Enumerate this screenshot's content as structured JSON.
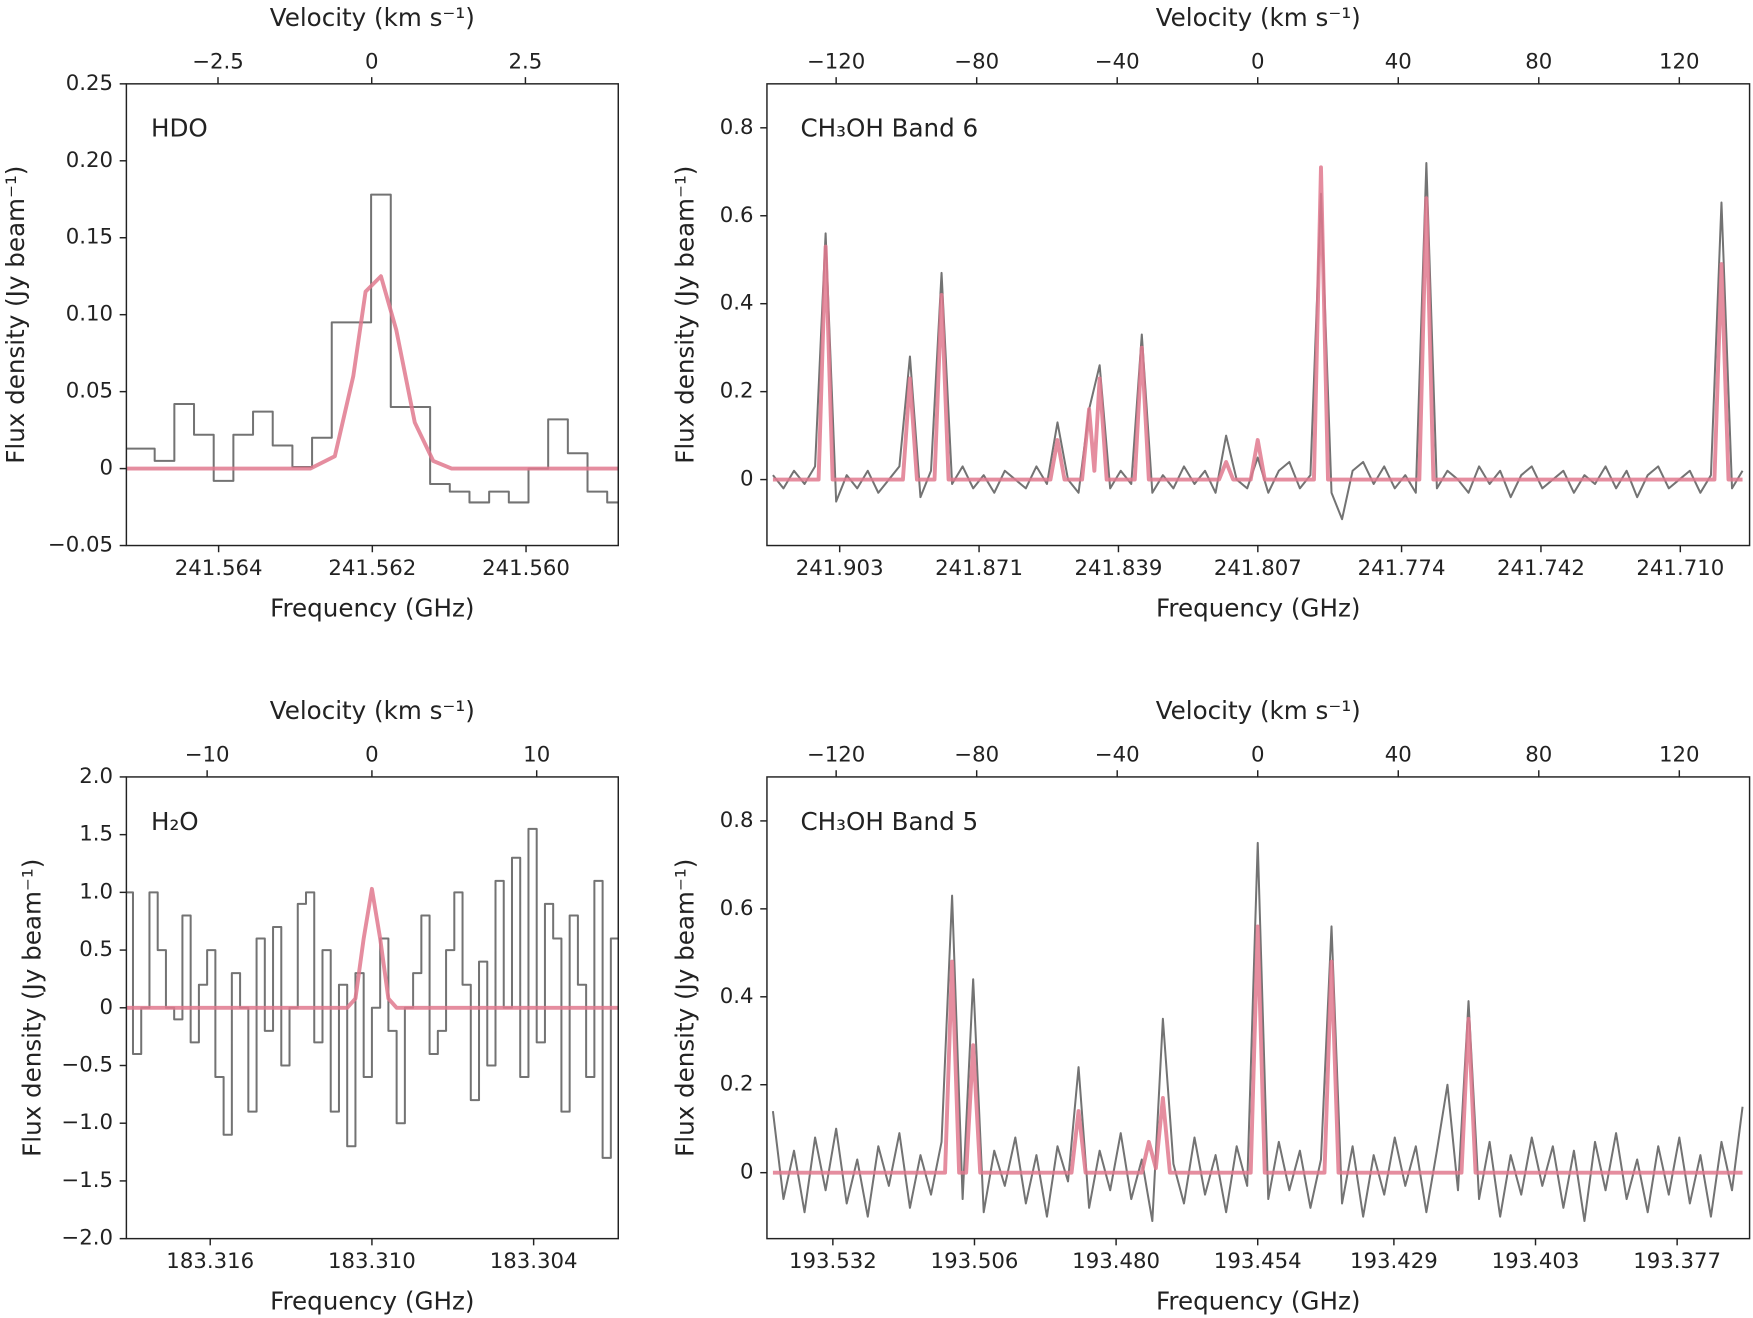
{
  "chart_data": [
    {
      "type": "line",
      "annotation": "HDO",
      "xlabel": "Frequency (GHz)",
      "x2label": "Velocity (km s⁻¹)",
      "ylabel": "Flux density (Jy beam⁻¹)",
      "xlim": [
        241.5652,
        241.5588
      ],
      "xticks": [
        241.564,
        241.562,
        {
          "value": 241.56,
          "label": "241.560"
        }
      ],
      "x2lim": [
        -3.99,
        4.01
      ],
      "x2ticks": [
        {
          "value": -2.5,
          "label": "−2.5"
        },
        0,
        2.5
      ],
      "ylim": [
        -0.05,
        0.25
      ],
      "yticks": [
        {
          "value": -0.05,
          "label": "−0.05"
        },
        0,
        0.05,
        {
          "value": 0.1,
          "label": "0.10"
        },
        0.15,
        {
          "value": 0.2,
          "label": "0.20"
        },
        0.25
      ],
      "series": [
        {
          "color": "#737373",
          "step": true,
          "axis": "x2",
          "x": [
            -4.01,
            -3.69,
            -3.37,
            -3.05,
            -2.73,
            -2.41,
            -2.09,
            -1.77,
            -1.45,
            -1.13,
            -0.81,
            -0.49,
            -0.17,
            0.15,
            0.47,
            0.79,
            1.11,
            1.43,
            1.75,
            2.07,
            2.39,
            2.71,
            3.03,
            3.35,
            3.67,
            3.99
          ],
          "values": [
            0.013,
            0.013,
            0.005,
            0.042,
            0.022,
            -0.008,
            0.022,
            0.037,
            0.015,
            0.001,
            0.02,
            0.095,
            0.095,
            0.178,
            0.04,
            0.04,
            -0.01,
            -0.015,
            -0.022,
            -0.015,
            -0.022,
            0.0,
            0.032,
            0.01,
            -0.015,
            -0.022
          ]
        },
        {
          "color": "#e0798e",
          "axis": "x2",
          "x": [
            -4.01,
            -1.0,
            -0.6,
            -0.3,
            -0.1,
            0.15,
            0.4,
            0.7,
            1.0,
            1.3,
            4.01
          ],
          "values": [
            0,
            0,
            0.008,
            0.06,
            0.115,
            0.125,
            0.09,
            0.03,
            0.005,
            0,
            0
          ]
        }
      ]
    },
    {
      "type": "line",
      "annotation": "CH₃OH Band 6",
      "xlabel": "Frequency (GHz)",
      "x2label": "Velocity (km s⁻¹)",
      "ylabel": "Flux density (Jy beam⁻¹)",
      "xlim": [
        241.9197,
        241.6941
      ],
      "xticks": [
        241.903,
        241.871,
        241.839,
        241.807,
        241.774,
        241.742,
        {
          "value": 241.71,
          "label": "241.710"
        }
      ],
      "x2lim": [
        -139.7,
        140
      ],
      "x2ticks": [
        {
          "value": -120,
          "label": "−120"
        },
        {
          "value": -80,
          "label": "−80"
        },
        {
          "value": -40,
          "label": "−40"
        },
        0,
        40,
        80,
        120
      ],
      "ylim": [
        -0.15,
        0.9
      ],
      "yticks": [
        0,
        0.2,
        0.4,
        0.6,
        0.8
      ],
      "series": [
        {
          "color": "#737373",
          "axis": "x2",
          "x": [
            -138,
            -135,
            -132,
            -129,
            -126,
            -123,
            -120,
            -117,
            -114,
            -111,
            -108,
            -105,
            -102,
            -99,
            -96,
            -93,
            -90,
            -87,
            -84,
            -81,
            -78,
            -75,
            -72,
            -69,
            -66,
            -63,
            -60,
            -57,
            -54,
            -51,
            -48,
            -45,
            -42,
            -39,
            -36,
            -33,
            -30,
            -27,
            -24,
            -21,
            -18,
            -15,
            -12,
            -9,
            -6,
            -3,
            0,
            3,
            6,
            9,
            12,
            15,
            18,
            21,
            24,
            27,
            30,
            33,
            36,
            39,
            42,
            45,
            48,
            51,
            54,
            57,
            60,
            63,
            66,
            69,
            72,
            75,
            78,
            81,
            84,
            87,
            90,
            93,
            96,
            99,
            102,
            105,
            108,
            111,
            114,
            117,
            120,
            123,
            126,
            129,
            132,
            135,
            138
          ],
          "values": [
            0.01,
            -0.02,
            0.02,
            -0.01,
            0.03,
            0.56,
            -0.05,
            0.01,
            -0.02,
            0.02,
            -0.03,
            0.0,
            0.03,
            0.28,
            -0.04,
            0.02,
            0.47,
            -0.01,
            0.03,
            -0.02,
            0.01,
            -0.03,
            0.02,
            0.0,
            -0.02,
            0.03,
            -0.01,
            0.13,
            0.0,
            -0.03,
            0.16,
            0.26,
            -0.02,
            0.02,
            -0.01,
            0.33,
            -0.03,
            0.01,
            -0.02,
            0.03,
            -0.01,
            0.02,
            -0.03,
            0.1,
            0.0,
            -0.02,
            0.05,
            -0.03,
            0.02,
            0.04,
            -0.02,
            0.01,
            0.65,
            -0.03,
            -0.09,
            0.02,
            0.04,
            -0.01,
            0.03,
            -0.02,
            0.01,
            -0.03,
            0.72,
            -0.02,
            0.02,
            0.0,
            -0.03,
            0.03,
            -0.01,
            0.02,
            -0.04,
            0.01,
            0.03,
            -0.02,
            0.0,
            0.02,
            -0.03,
            0.01,
            -0.01,
            0.03,
            -0.02,
            0.02,
            -0.04,
            0.01,
            0.03,
            -0.02,
            0.0,
            0.02,
            -0.03,
            0.01,
            0.63,
            -0.02,
            0.02
          ]
        },
        {
          "color": "#e0798e",
          "axis": "x2",
          "x": [
            -138,
            -125,
            -123,
            -121,
            -101,
            -99,
            -97,
            -92,
            -90,
            -88,
            -59,
            -57,
            -55,
            -50,
            -48,
            -46.5,
            -45,
            -43,
            -35,
            -33,
            -31,
            -11,
            -9,
            -7,
            -2,
            0,
            2,
            16,
            18,
            20,
            46,
            48,
            50,
            130,
            132,
            134,
            138
          ],
          "values": [
            0,
            0,
            0.53,
            0,
            0,
            0.23,
            0,
            0,
            0.42,
            0,
            0,
            0.09,
            0,
            0,
            0.16,
            0.02,
            0.23,
            0,
            0,
            0.3,
            0,
            0,
            0.04,
            0,
            0,
            0.09,
            0,
            0,
            0.71,
            0,
            0,
            0.64,
            0,
            0,
            0.49,
            0,
            0
          ]
        }
      ]
    },
    {
      "type": "line",
      "annotation": "H₂O",
      "xlabel": "Frequency (GHz)",
      "x2label": "Velocity (km s⁻¹)",
      "ylabel": "Flux density (Jy beam⁻¹)",
      "xlim": [
        183.31911,
        183.30086
      ],
      "xticks": [
        183.316,
        {
          "value": 183.31,
          "label": "183.310"
        },
        183.304
      ],
      "x2lim": [
        -14.9,
        14.95
      ],
      "x2ticks": [
        {
          "value": -10,
          "label": "−10"
        },
        0,
        10
      ],
      "ylim": [
        -2,
        2
      ],
      "yticks": [
        {
          "value": -2,
          "label": "−2.0"
        },
        {
          "value": -1.5,
          "label": "−1.5"
        },
        {
          "value": -1,
          "label": "−1.0"
        },
        {
          "value": -0.5,
          "label": "−0.5"
        },
        0,
        0.5,
        {
          "value": 1,
          "label": "1.0"
        },
        1.5,
        {
          "value": 2,
          "label": "2.0"
        }
      ],
      "series": [
        {
          "color": "#737373",
          "step": true,
          "axis": "x2",
          "x": [
            -14.75,
            -14.25,
            -13.75,
            -13.25,
            -12.75,
            -12.25,
            -11.75,
            -11.25,
            -10.75,
            -10.25,
            -9.75,
            -9.25,
            -8.75,
            -8.25,
            -7.75,
            -7.25,
            -6.75,
            -6.25,
            -5.75,
            -5.25,
            -4.75,
            -4.25,
            -3.75,
            -3.25,
            -2.75,
            -2.25,
            -1.75,
            -1.25,
            -0.75,
            -0.25,
            0.25,
            0.75,
            1.25,
            1.75,
            2.25,
            2.75,
            3.25,
            3.75,
            4.25,
            4.75,
            5.25,
            5.75,
            6.25,
            6.75,
            7.25,
            7.75,
            8.25,
            8.75,
            9.25,
            9.75,
            10.25,
            10.75,
            11.25,
            11.75,
            12.25,
            12.75,
            13.25,
            13.75,
            14.25,
            14.75
          ],
          "values": [
            1.0,
            -0.4,
            0.0,
            1.0,
            0.5,
            0.0,
            -0.1,
            0.8,
            -0.3,
            0.2,
            0.5,
            -0.6,
            -1.1,
            0.3,
            0.0,
            -0.9,
            0.6,
            -0.2,
            0.7,
            -0.5,
            0.0,
            0.9,
            1.0,
            -0.3,
            0.5,
            -0.9,
            0.2,
            -1.2,
            0.3,
            -0.6,
            0.0,
            0.6,
            -0.2,
            -1.0,
            0.0,
            0.3,
            0.8,
            -0.4,
            -0.2,
            0.5,
            1.0,
            0.2,
            -0.8,
            0.4,
            -0.5,
            1.1,
            0.0,
            1.3,
            -0.6,
            1.55,
            -0.3,
            0.9,
            0.6,
            -0.9,
            0.8,
            0.2,
            -0.6,
            1.1,
            -1.3,
            0.6
          ]
        },
        {
          "color": "#e0798e",
          "axis": "x2",
          "x": [
            -14.9,
            -1.5,
            -1,
            -0.5,
            0,
            0.5,
            1,
            1.5,
            14.95
          ],
          "values": [
            0,
            0,
            0.08,
            0.6,
            1.03,
            0.6,
            0.08,
            0,
            0
          ]
        }
      ]
    },
    {
      "type": "line",
      "annotation": "CH₃OH Band 5",
      "xlabel": "Frequency (GHz)",
      "x2label": "Velocity (km s⁻¹)",
      "ylabel": "Flux density (Jy beam⁻¹)",
      "xlim": [
        193.5441,
        193.3637
      ],
      "xticks": [
        193.532,
        193.506,
        {
          "value": 193.48,
          "label": "193.480"
        },
        193.454,
        193.429,
        193.403,
        193.377
      ],
      "x2lim": [
        -139.7,
        140
      ],
      "x2ticks": [
        {
          "value": -120,
          "label": "−120"
        },
        {
          "value": -80,
          "label": "−80"
        },
        {
          "value": -40,
          "label": "−40"
        },
        0,
        40,
        80,
        120
      ],
      "ylim": [
        -0.15,
        0.9
      ],
      "yticks": [
        0,
        0.2,
        0.4,
        0.6,
        0.8
      ],
      "series": [
        {
          "color": "#737373",
          "axis": "x2",
          "x": [
            -138,
            -135,
            -132,
            -129,
            -126,
            -123,
            -120,
            -117,
            -114,
            -111,
            -108,
            -105,
            -102,
            -99,
            -96,
            -93,
            -90,
            -87,
            -84,
            -81,
            -78,
            -75,
            -72,
            -69,
            -66,
            -63,
            -60,
            -57,
            -54,
            -51,
            -48,
            -45,
            -42,
            -39,
            -36,
            -33,
            -30,
            -27,
            -24,
            -21,
            -18,
            -15,
            -12,
            -9,
            -6,
            -3,
            0,
            3,
            6,
            9,
            12,
            15,
            18,
            21,
            24,
            27,
            30,
            33,
            36,
            39,
            42,
            45,
            48,
            51,
            54,
            57,
            60,
            63,
            66,
            69,
            72,
            75,
            78,
            81,
            84,
            87,
            90,
            93,
            96,
            99,
            102,
            105,
            108,
            111,
            114,
            117,
            120,
            123,
            126,
            129,
            132,
            135,
            138
          ],
          "values": [
            0.14,
            -0.06,
            0.05,
            -0.09,
            0.08,
            -0.04,
            0.1,
            -0.07,
            0.03,
            -0.1,
            0.06,
            -0.03,
            0.09,
            -0.08,
            0.04,
            -0.05,
            0.07,
            0.63,
            -0.06,
            0.44,
            -0.09,
            0.05,
            -0.03,
            0.08,
            -0.07,
            0.04,
            -0.1,
            0.06,
            -0.02,
            0.24,
            -0.08,
            0.05,
            -0.04,
            0.09,
            -0.06,
            0.03,
            -0.11,
            0.35,
            0.02,
            -0.07,
            0.08,
            -0.05,
            0.04,
            -0.09,
            0.06,
            -0.03,
            0.75,
            -0.06,
            0.07,
            -0.04,
            0.05,
            -0.08,
            0.03,
            0.56,
            -0.07,
            0.06,
            -0.1,
            0.04,
            -0.05,
            0.08,
            -0.03,
            0.06,
            -0.09,
            0.05,
            0.2,
            -0.04,
            0.39,
            -0.06,
            0.07,
            -0.1,
            0.04,
            -0.05,
            0.08,
            -0.03,
            0.06,
            -0.08,
            0.05,
            -0.11,
            0.07,
            -0.04,
            0.09,
            -0.06,
            0.03,
            -0.09,
            0.06,
            -0.05,
            0.08,
            -0.07,
            0.04,
            -0.1,
            0.07,
            -0.04,
            0.15
          ]
        },
        {
          "color": "#e0798e",
          "axis": "x2",
          "x": [
            -138,
            -89,
            -87,
            -85,
            -83,
            -81,
            -79,
            -53,
            -51,
            -49,
            -33,
            -31,
            -29,
            -27,
            -25,
            -2,
            0,
            2,
            19,
            21,
            23,
            58,
            60,
            62,
            138
          ],
          "values": [
            0,
            0,
            0.48,
            0,
            0,
            0.29,
            0,
            0,
            0.14,
            0,
            0,
            0.07,
            0.01,
            0.17,
            0,
            0,
            0.56,
            0,
            0,
            0.48,
            0,
            0,
            0.35,
            0,
            0
          ]
        }
      ]
    }
  ]
}
